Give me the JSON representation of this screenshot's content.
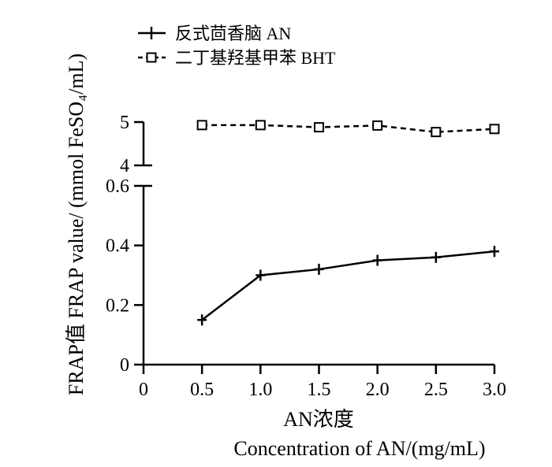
{
  "chart_data": {
    "type": "line",
    "xlabel_cn": "AN浓度",
    "xlabel_en": "Concentration of AN/(mg/mL)",
    "ylabel": "FRAP值 FRAP value/ (mmol FeSO₄/mL)",
    "x_ticks": [
      "0",
      "0.5",
      "1.0",
      "1.5",
      "2.0",
      "2.5",
      "3.0"
    ],
    "y_ticks_lower": [
      "0",
      "0.2",
      "0.4",
      "0.6"
    ],
    "y_ticks_upper": [
      "4",
      "5"
    ],
    "xlim": [
      0,
      3.0
    ],
    "ylim_lower": [
      0,
      0.6
    ],
    "ylim_upper": [
      4,
      5
    ],
    "axis_break": true,
    "legend_position": "top-left",
    "series": [
      {
        "name": "反式茴香脑 AN",
        "style": "solid",
        "marker": "plus",
        "x": [
          0.5,
          1.0,
          1.5,
          2.0,
          2.5,
          3.0
        ],
        "y": [
          0.15,
          0.3,
          0.32,
          0.35,
          0.36,
          0.38
        ]
      },
      {
        "name": "二丁基羟基甲苯 BHT",
        "style": "dashed",
        "marker": "square",
        "x": [
          0.5,
          1.0,
          1.5,
          2.0,
          2.5,
          3.0
        ],
        "y": [
          4.93,
          4.93,
          4.88,
          4.92,
          4.77,
          4.84
        ]
      }
    ]
  }
}
